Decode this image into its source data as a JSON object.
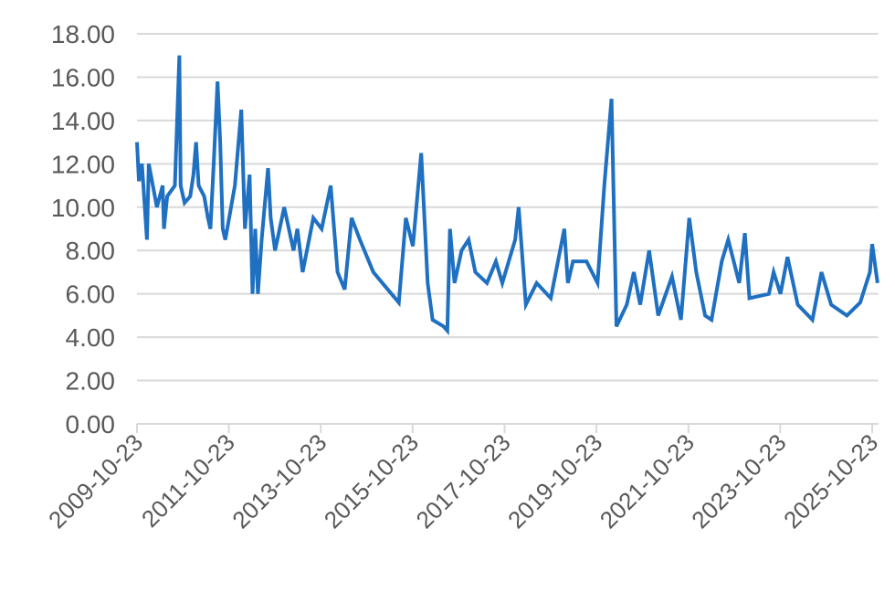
{
  "chart_data": {
    "type": "line",
    "x": [
      "2009-10-23",
      "2009-11-07",
      "2009-12-01",
      "2010-01-10",
      "2010-01-25",
      "2010-03-30",
      "2010-05-15",
      "2010-05-25",
      "2010-06-20",
      "2010-08-20",
      "2010-09-25",
      "2010-10-05",
      "2010-11-05",
      "2010-12-20",
      "2011-01-15",
      "2011-02-05",
      "2011-02-25",
      "2011-04-10",
      "2011-05-10",
      "2011-05-30",
      "2011-06-25",
      "2011-07-25",
      "2011-08-15",
      "2011-09-05",
      "2011-09-25",
      "2011-12-10",
      "2012-01-30",
      "2012-02-28",
      "2012-04-05",
      "2012-04-28",
      "2012-05-20",
      "2012-06-10",
      "2012-07-10",
      "2012-08-30",
      "2012-09-20",
      "2012-10-25",
      "2013-01-05",
      "2013-03-20",
      "2013-04-20",
      "2013-06-01",
      "2013-08-25",
      "2013-10-30",
      "2014-01-10",
      "2014-03-05",
      "2014-05-01",
      "2014-06-25",
      "2014-08-30",
      "2014-12-15",
      "2015-02-25",
      "2015-07-05",
      "2015-08-30",
      "2015-10-25",
      "2015-12-30",
      "2016-02-20",
      "2016-03-30",
      "2016-06-25",
      "2016-07-25",
      "2016-08-15",
      "2016-09-20",
      "2016-11-15",
      "2017-01-10",
      "2017-03-05",
      "2017-06-05",
      "2017-08-15",
      "2017-10-05",
      "2018-01-15",
      "2018-02-12",
      "2018-04-10",
      "2018-07-05",
      "2018-10-25",
      "2019-02-10",
      "2019-03-10",
      "2019-04-20",
      "2019-08-05",
      "2019-11-01",
      "2019-12-25",
      "2020-02-20",
      "2020-03-30",
      "2020-06-20",
      "2020-08-15",
      "2020-10-05",
      "2020-12-15",
      "2021-02-25",
      "2021-06-15",
      "2021-08-25",
      "2021-10-30",
      "2021-12-25",
      "2022-03-05",
      "2022-04-25",
      "2022-07-15",
      "2022-09-05",
      "2022-12-01",
      "2023-01-15",
      "2023-02-20",
      "2023-07-25",
      "2023-09-01",
      "2023-10-25",
      "2023-12-20",
      "2024-03-10",
      "2024-07-05",
      "2024-09-15",
      "2024-12-01",
      "2025-04-05",
      "2025-07-20",
      "2025-10-05",
      "2025-10-23",
      "2025-12-05"
    ],
    "series": [
      {
        "color": "#1f70c1",
        "values": [
          13.0,
          11.2,
          12.0,
          8.5,
          12.0,
          10.0,
          11.0,
          9.0,
          10.5,
          11.0,
          17.0,
          11.0,
          10.2,
          10.5,
          11.5,
          13.0,
          11.0,
          10.5,
          9.5,
          9.0,
          12.0,
          15.8,
          13.0,
          9.0,
          8.5,
          11.0,
          14.5,
          9.0,
          11.5,
          6.0,
          9.0,
          6.0,
          8.5,
          11.8,
          9.5,
          8.0,
          10.0,
          8.0,
          9.0,
          7.0,
          9.5,
          9.0,
          11.0,
          7.0,
          6.2,
          9.5,
          8.5,
          7.0,
          6.5,
          5.6,
          9.5,
          8.2,
          12.5,
          6.5,
          4.8,
          4.5,
          4.3,
          9.0,
          6.5,
          8.0,
          8.5,
          7.0,
          6.5,
          7.5,
          6.5,
          8.5,
          10.0,
          5.5,
          6.5,
          5.8,
          9.0,
          6.5,
          7.5,
          7.5,
          6.5,
          11.0,
          15.0,
          4.5,
          5.5,
          7.0,
          5.5,
          8.0,
          5.0,
          6.8,
          4.8,
          9.5,
          7.0,
          5.0,
          4.8,
          7.5,
          8.5,
          6.5,
          8.8,
          5.8,
          6.0,
          7.0,
          6.0,
          7.7,
          5.5,
          4.8,
          7.0,
          5.5,
          5.0,
          5.6,
          7.0,
          8.3,
          6.5
        ]
      }
    ],
    "xlim": [
      "2009-10-23",
      "2025-12-10"
    ],
    "xticks": [
      "2009-10-23",
      "2011-10-23",
      "2013-10-23",
      "2015-10-23",
      "2017-10-23",
      "2019-10-23",
      "2021-10-23",
      "2023-10-23",
      "2025-10-23"
    ],
    "ylim": [
      0,
      18
    ],
    "yticks": [
      {
        "value": 0,
        "label": "0.00"
      },
      {
        "value": 2,
        "label": "2.00"
      },
      {
        "value": 4,
        "label": "4.00"
      },
      {
        "value": 6,
        "label": "6.00"
      },
      {
        "value": 8,
        "label": "8.00"
      },
      {
        "value": 10,
        "label": "10.00"
      },
      {
        "value": 12,
        "label": "12.00"
      },
      {
        "value": 14,
        "label": "14.00"
      },
      {
        "value": 16,
        "label": "16.00"
      },
      {
        "value": 18,
        "label": "18.00"
      }
    ],
    "grid": true
  }
}
